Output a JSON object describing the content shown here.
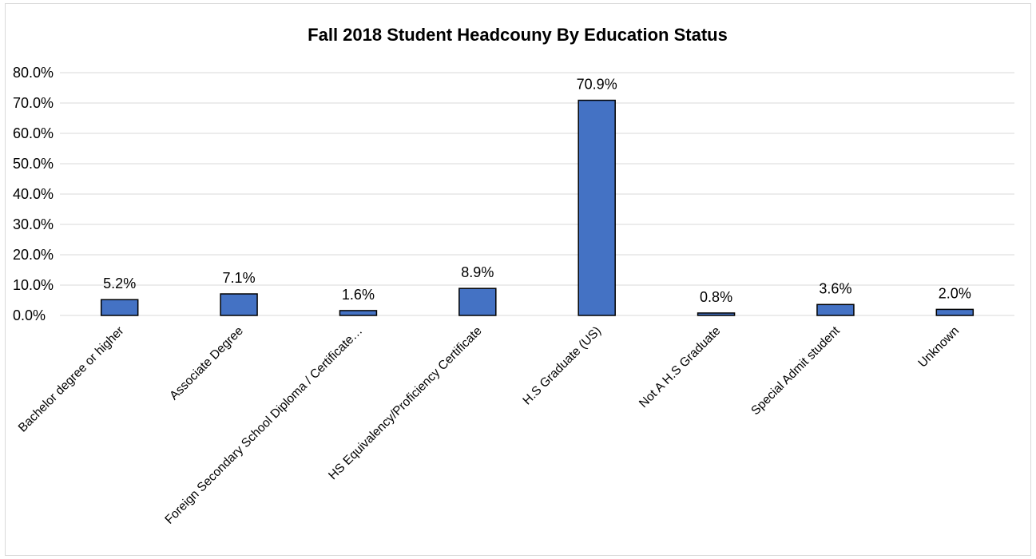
{
  "chart_data": {
    "type": "bar",
    "title": "Fall 2018 Student Headcouny By Education Status",
    "xlabel": "",
    "ylabel": "",
    "categories": [
      "Bachelor degree or higher",
      "Associate Degree",
      "Foreign Secondary School Diploma / Certificate…",
      "HS Equivalency/Proficiency Certificate",
      "H.S Graduate (US)",
      "Not A H.S Graduate",
      "Special Admit student",
      "Unknown"
    ],
    "values": [
      5.2,
      7.1,
      1.6,
      8.9,
      70.9,
      0.8,
      3.6,
      2.0
    ],
    "data_labels": [
      "5.2%",
      "7.1%",
      "1.6%",
      "8.9%",
      "70.9%",
      "0.8%",
      "3.6%",
      "2.0%"
    ],
    "ylim": [
      0,
      80
    ],
    "yticks": [
      0,
      10,
      20,
      30,
      40,
      50,
      60,
      70,
      80
    ],
    "ytick_labels": [
      "0.0%",
      "10.0%",
      "20.0%",
      "30.0%",
      "40.0%",
      "50.0%",
      "60.0%",
      "70.0%",
      "80.0%"
    ],
    "grid": true,
    "legend": "none",
    "bar_color": "#4472c4",
    "bar_edge_color": "#000000",
    "grid_color": "#d9d9d9"
  }
}
